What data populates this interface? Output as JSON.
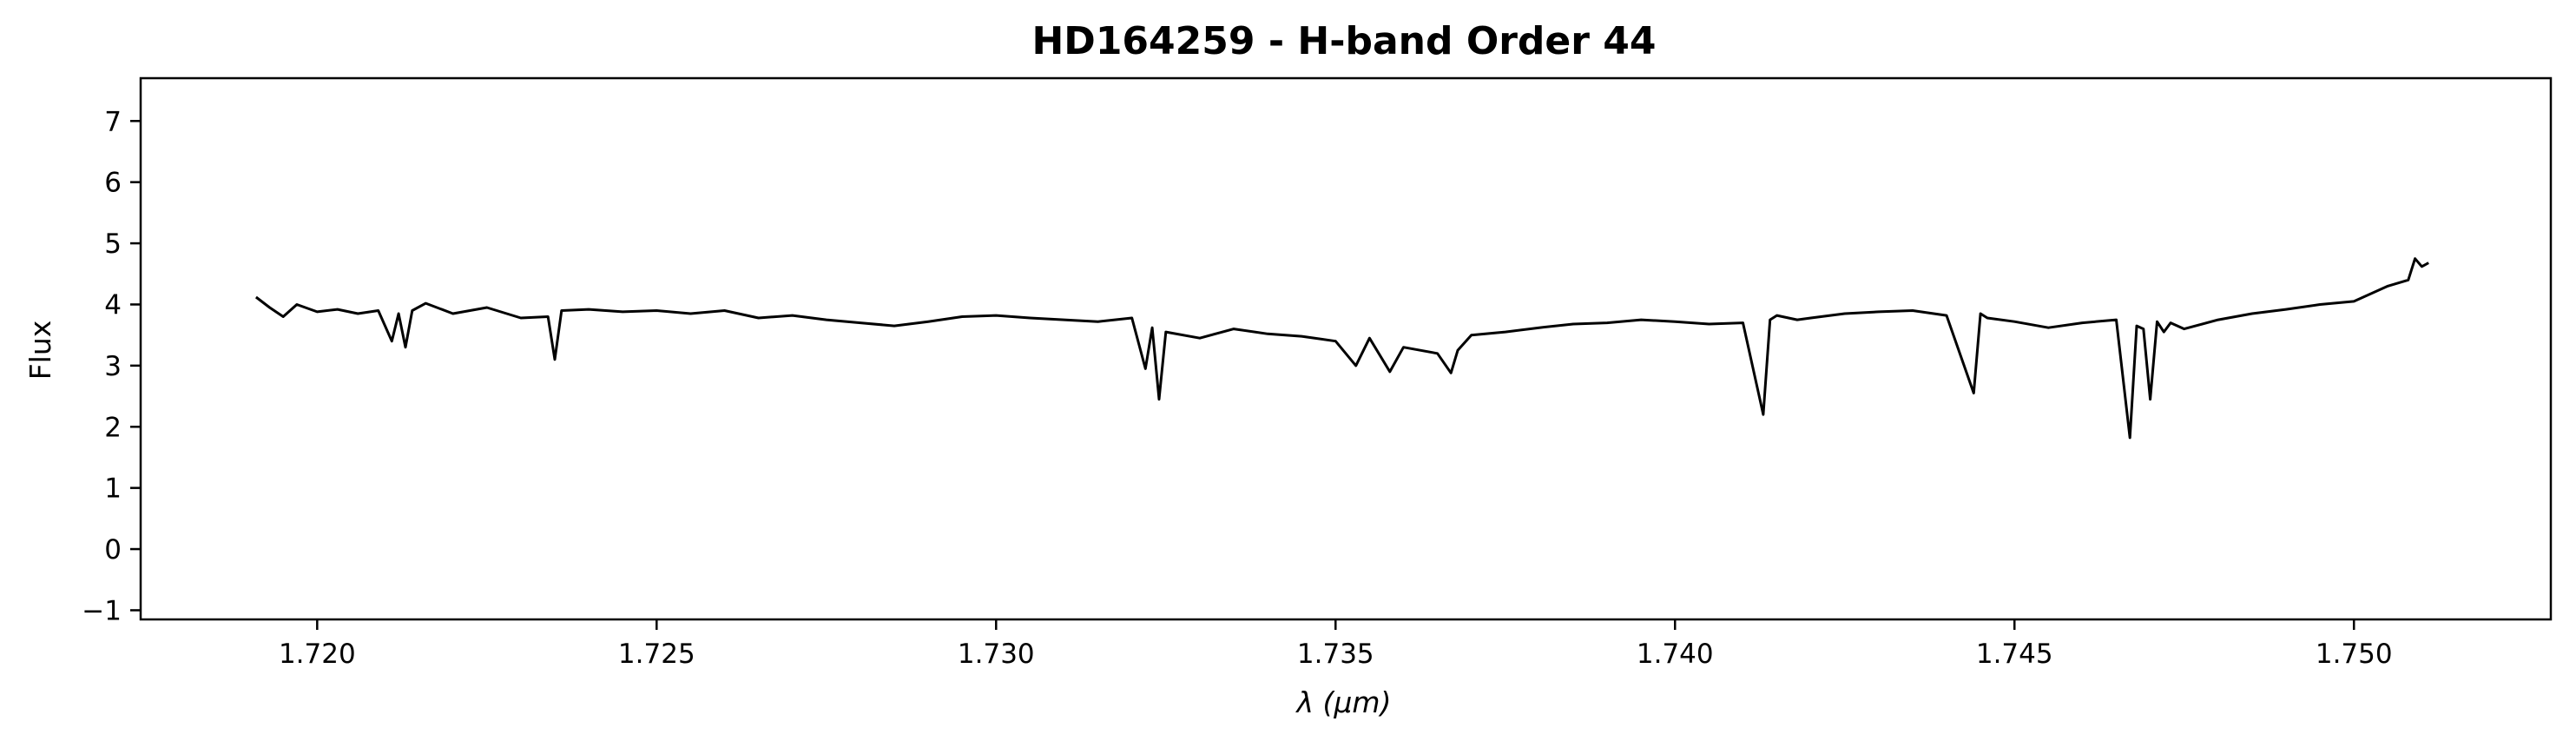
{
  "chart_data": {
    "type": "line",
    "title": "HD164259 - H-band Order 44",
    "xlabel": "λ (μm)",
    "ylabel": "Flux",
    "xlim": [
      1.7174,
      1.7529
    ],
    "ylim": [
      -1.15,
      7.7
    ],
    "x_ticks": [
      1.72,
      1.725,
      1.73,
      1.735,
      1.74,
      1.745,
      1.75
    ],
    "x_tick_labels": [
      "1.720",
      "1.725",
      "1.730",
      "1.735",
      "1.740",
      "1.745",
      "1.750"
    ],
    "y_ticks": [
      -1,
      0,
      1,
      2,
      3,
      4,
      5,
      6,
      7
    ],
    "y_tick_labels": [
      "−1",
      "0",
      "1",
      "2",
      "3",
      "4",
      "5",
      "6",
      "7"
    ],
    "grid": false,
    "line_color": "#000000",
    "series": [
      {
        "x": [
          1.7191,
          1.7193,
          1.7195,
          1.7197,
          1.72,
          1.7203,
          1.7206,
          1.7209,
          1.7211,
          1.7212,
          1.7213,
          1.7214,
          1.7216,
          1.722,
          1.7225,
          1.723,
          1.7234,
          1.7235,
          1.7236,
          1.724,
          1.7245,
          1.725,
          1.7255,
          1.726,
          1.7265,
          1.727,
          1.7275,
          1.728,
          1.7285,
          1.729,
          1.7295,
          1.73,
          1.7305,
          1.731,
          1.7315,
          1.732,
          1.7322,
          1.7323,
          1.7324,
          1.7325,
          1.733,
          1.7335,
          1.734,
          1.7345,
          1.735,
          1.7353,
          1.7355,
          1.7358,
          1.736,
          1.7365,
          1.7367,
          1.7368,
          1.737,
          1.7375,
          1.738,
          1.7385,
          1.739,
          1.7395,
          1.74,
          1.7405,
          1.741,
          1.7413,
          1.7414,
          1.7415,
          1.7418,
          1.742,
          1.7425,
          1.743,
          1.7435,
          1.744,
          1.7444,
          1.7445,
          1.7446,
          1.745,
          1.7455,
          1.746,
          1.7465,
          1.7467,
          1.7468,
          1.7469,
          1.747,
          1.7471,
          1.7472,
          1.7473,
          1.7475,
          1.748,
          1.7485,
          1.749,
          1.7495,
          1.75,
          1.7505,
          1.7508,
          1.7509,
          1.751,
          1.7511
        ],
        "y": [
          4.12,
          3.95,
          3.8,
          4.0,
          3.88,
          3.92,
          3.85,
          3.9,
          3.4,
          3.85,
          3.3,
          3.9,
          4.02,
          3.85,
          3.95,
          3.78,
          3.8,
          3.1,
          3.9,
          3.92,
          3.88,
          3.9,
          3.85,
          3.9,
          3.78,
          3.82,
          3.75,
          3.7,
          3.65,
          3.72,
          3.8,
          3.82,
          3.78,
          3.75,
          3.72,
          3.78,
          2.95,
          3.62,
          2.45,
          3.55,
          3.45,
          3.6,
          3.52,
          3.48,
          3.4,
          3.0,
          3.45,
          2.9,
          3.3,
          3.2,
          2.88,
          3.25,
          3.5,
          3.55,
          3.62,
          3.68,
          3.7,
          3.75,
          3.72,
          3.68,
          3.7,
          2.2,
          3.75,
          3.82,
          3.75,
          3.78,
          3.85,
          3.88,
          3.9,
          3.82,
          2.55,
          3.85,
          3.78,
          3.72,
          3.62,
          3.7,
          3.75,
          1.82,
          3.65,
          3.6,
          2.45,
          3.72,
          3.55,
          3.7,
          3.6,
          3.75,
          3.85,
          3.92,
          4.0,
          4.05,
          4.3,
          4.4,
          4.75,
          4.62,
          4.68
        ]
      }
    ]
  }
}
